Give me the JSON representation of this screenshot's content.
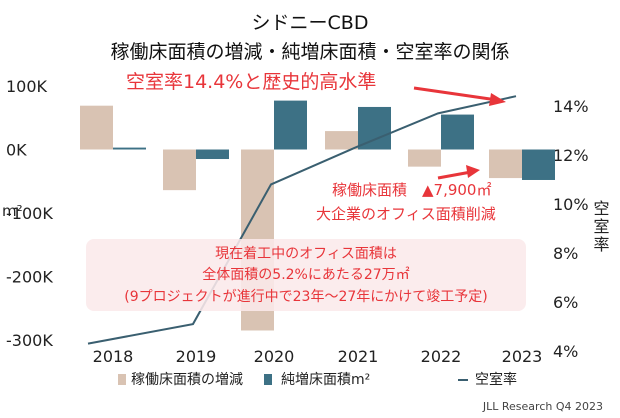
{
  "chart_data": {
    "type": "bar",
    "title": "シドニーCBD",
    "subtitle": "稼働床面積の増減・純増床面積・空室率の関係",
    "categories": [
      "2018",
      "2019",
      "2020",
      "2021",
      "2022",
      "2023"
    ],
    "y_left_label": "m²",
    "y_left_ticks": [
      "100K",
      "0K",
      "-100K",
      "-200K",
      "-300K"
    ],
    "y_left_lim": [
      -300000,
      100000
    ],
    "y_right_label": "空室率",
    "y_right_ticks": [
      "14%",
      "12%",
      "10%",
      "8%",
      "6%",
      "4%"
    ],
    "y_right_lim": [
      4,
      14.6
    ],
    "series": [
      {
        "name": "稼働床面積の増減",
        "type": "bar",
        "color": "#d9c3b3",
        "values": [
          69000,
          -64000,
          -285000,
          29000,
          -27000,
          -45000
        ]
      },
      {
        "name": "純増床面積m²",
        "type": "bar",
        "color": "#3d7185",
        "values": [
          3000,
          -15000,
          77000,
          67000,
          55000,
          -48000
        ]
      },
      {
        "name": "空室率",
        "type": "line",
        "color": "#3a5f70",
        "x": [
          2018,
          2019,
          2020,
          2021,
          2022,
          2023
        ],
        "values": [
          4.3,
          5.1,
          10.8,
          12.3,
          13.7,
          14.4
        ]
      }
    ],
    "annotations": {
      "vacancy_headline": "空室率14.4%と歴史的高水準",
      "decline_line1": "稼働床面積　▲7,900㎡",
      "decline_line2": "大企業のオフィス面積削減",
      "construction_line1": "現在着工中のオフィス面積は",
      "construction_line2": "全体面積の5.2%にあたる27万㎡",
      "construction_line3": "(9プロジェクトが進行中で23年～27年にかけて竣工予定)"
    },
    "legend_position": "bottom",
    "grid": false
  },
  "source": "JLL Research Q4 2023",
  "colors": {
    "accent_red": "#e8353a",
    "callout_bg": "#fbe9ea"
  }
}
